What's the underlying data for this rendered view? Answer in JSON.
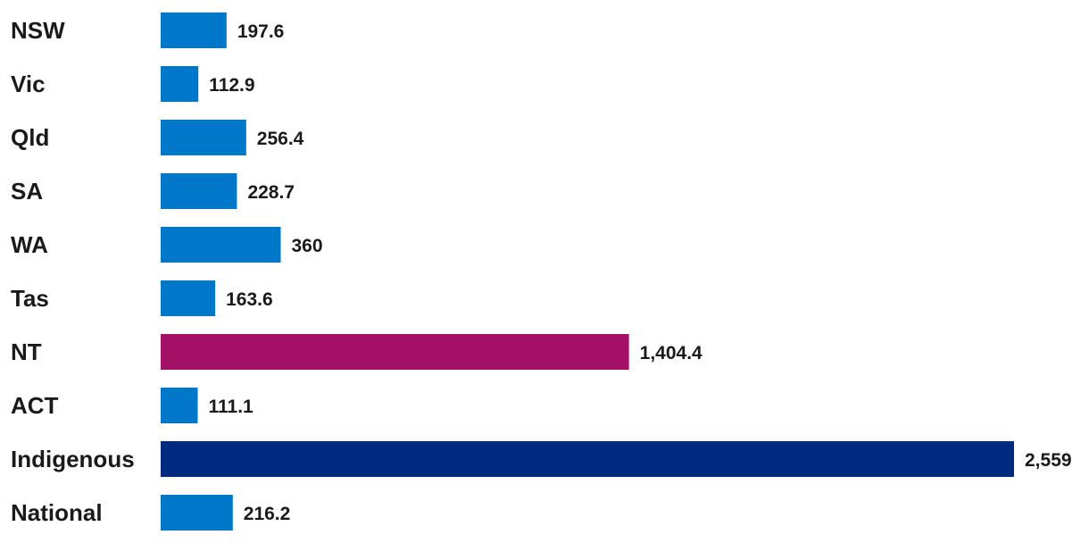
{
  "chart_data": {
    "type": "bar",
    "orientation": "horizontal",
    "title": "",
    "xlabel": "",
    "ylabel": "",
    "grid": false,
    "categories": [
      "NSW",
      "Vic",
      "Qld",
      "SA",
      "WA",
      "Tas",
      "NT",
      "ACT",
      "Indigenous",
      "National"
    ],
    "values": [
      197.6,
      112.9,
      256.4,
      228.7,
      360,
      163.6,
      1404.4,
      111.1,
      2559,
      216.2
    ],
    "value_labels": [
      "197.6",
      "112.9",
      "256.4",
      "228.7",
      "360",
      "163.6",
      "1,404.4",
      "111.1",
      "2,559",
      "216.2"
    ],
    "bar_colors": [
      "#0077c8",
      "#0077c8",
      "#0077c8",
      "#0077c8",
      "#0077c8",
      "#0077c8",
      "#a51166",
      "#0077c8",
      "#002a7f",
      "#0077c8"
    ],
    "xlim": [
      0,
      2559
    ]
  }
}
